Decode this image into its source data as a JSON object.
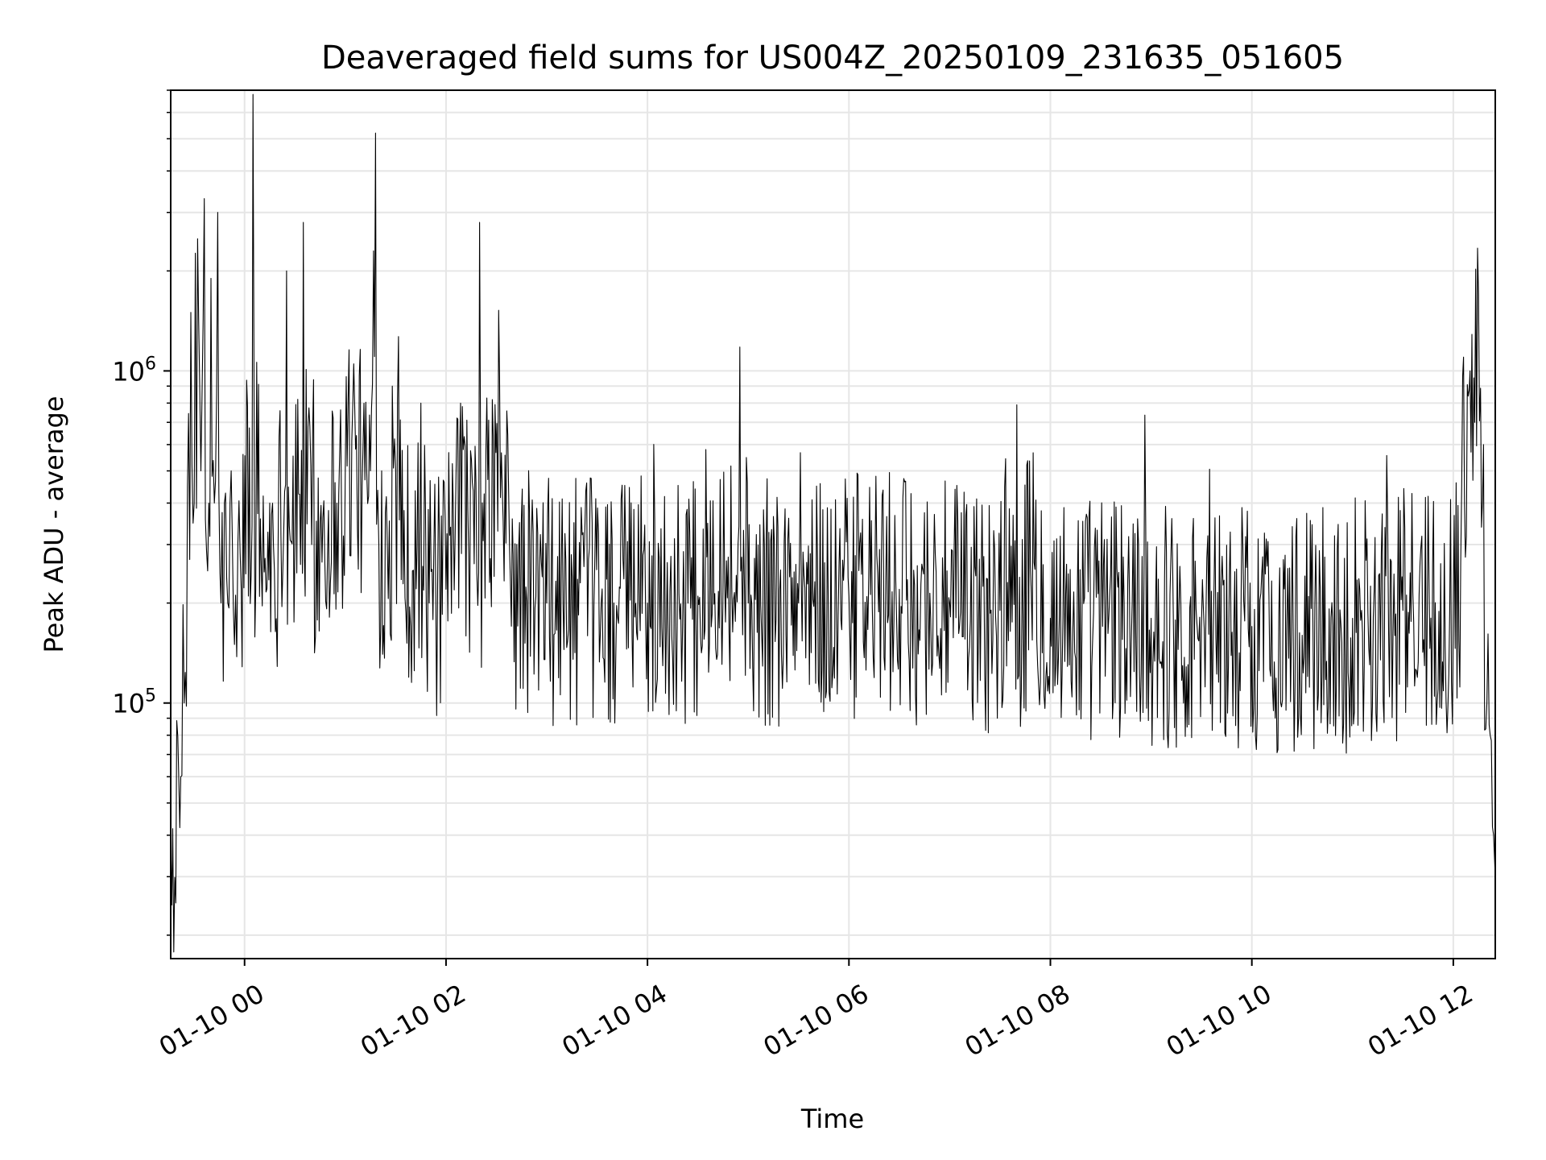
{
  "chart_data": {
    "type": "line",
    "title": "Deaveraged field sums for US004Z_20250109_231635_051605",
    "xlabel": "Time",
    "ylabel": "Peak ADU - average",
    "xscale": "time",
    "yscale": "log",
    "grid": true,
    "legend": "none",
    "line_color": "#000000",
    "grid_color": "#e6e6e6",
    "xlim": [
      "2025-01-09 23:16",
      "2025-01-10 12:25"
    ],
    "ylim": [
      17000,
      7000000
    ],
    "x_ticks": [
      {
        "value": "2025-01-10 00:00",
        "label": "01-10 00"
      },
      {
        "value": "2025-01-10 02:00",
        "label": "01-10 02"
      },
      {
        "value": "2025-01-10 04:00",
        "label": "01-10 04"
      },
      {
        "value": "2025-01-10 06:00",
        "label": "01-10 06"
      },
      {
        "value": "2025-01-10 08:00",
        "label": "01-10 08"
      },
      {
        "value": "2025-01-10 10:00",
        "label": "01-10 10"
      },
      {
        "value": "2025-01-10 12:00",
        "label": "01-10 12"
      }
    ],
    "y_major_ticks": [
      {
        "value": 100000,
        "base": "10",
        "exp": "5"
      },
      {
        "value": 1000000,
        "base": "10",
        "exp": "6"
      }
    ],
    "series": [
      {
        "x": [
          "2025-01-09 23:16",
          "2025-01-09 23:19",
          "2025-01-09 23:22",
          "2025-01-09 23:24",
          "2025-01-09 23:26",
          "2025-01-09 23:28",
          "2025-01-09 23:30",
          "2025-01-09 23:32",
          "2025-01-09 23:34",
          "2025-01-09 23:36",
          "2025-01-09 23:38",
          "2025-01-09 23:40",
          "2025-01-09 23:42",
          "2025-01-09 23:44",
          "2025-01-09 23:46",
          "2025-01-09 23:48",
          "2025-01-09 23:50",
          "2025-01-09 23:52",
          "2025-01-09 23:54",
          "2025-01-09 23:56",
          "2025-01-09 23:58",
          "2025-01-10 00:05",
          "2025-01-10 00:10",
          "2025-01-10 00:15",
          "2025-01-10 00:20",
          "2025-01-10 00:25",
          "2025-01-10 00:30",
          "2025-01-10 00:35",
          "2025-01-10 00:40",
          "2025-01-10 00:45",
          "2025-01-10 00:50",
          "2025-01-10 00:55",
          "2025-01-10 01:00",
          "2025-01-10 01:05",
          "2025-01-10 01:10",
          "2025-01-10 01:15",
          "2025-01-10 01:18",
          "2025-01-10 01:20",
          "2025-01-10 01:25",
          "2025-01-10 01:28",
          "2025-01-10 01:30",
          "2025-01-10 01:35",
          "2025-01-10 01:40",
          "2025-01-10 01:45",
          "2025-01-10 01:50",
          "2025-01-10 02:00",
          "2025-01-10 02:20",
          "2025-01-10 02:40",
          "2025-01-10 03:00",
          "2025-01-10 03:20",
          "2025-01-10 03:40",
          "2025-01-10 04:00",
          "2025-01-10 04:30",
          "2025-01-10 04:55",
          "2025-01-10 05:00",
          "2025-01-10 05:30",
          "2025-01-10 06:00",
          "2025-01-10 06:30",
          "2025-01-10 07:00",
          "2025-01-10 07:30",
          "2025-01-10 07:40",
          "2025-01-10 08:00",
          "2025-01-10 08:30",
          "2025-01-10 09:00",
          "2025-01-10 09:30",
          "2025-01-10 10:00",
          "2025-01-10 10:30",
          "2025-01-10 11:00",
          "2025-01-10 11:30",
          "2025-01-10 12:00",
          "2025-01-10 12:05",
          "2025-01-10 12:10",
          "2025-01-10 12:15",
          "2025-01-10 12:18",
          "2025-01-10 12:20",
          "2025-01-10 12:22",
          "2025-01-10 12:24",
          "2025-01-10 12:25"
        ],
        "y": [
          40000,
          25000,
          60000,
          100000,
          450000,
          1500000,
          400000,
          2500000,
          500000,
          3300000,
          250000,
          1900000,
          400000,
          3000000,
          200000,
          400000,
          200000,
          500000,
          150000,
          300000,
          220000,
          6800000,
          250000,
          400000,
          300000,
          2000000,
          300000,
          2800000,
          300000,
          350000,
          380000,
          400000,
          500000,
          1050000,
          450000,
          500000,
          5200000,
          300000,
          300000,
          900000,
          500000,
          380000,
          250000,
          800000,
          200000,
          220000,
          2800000,
          280000,
          200000,
          230000,
          200000,
          200000,
          210000,
          1180000,
          200000,
          200000,
          210000,
          220000,
          200000,
          190000,
          790000,
          180000,
          190000,
          180000,
          170000,
          170000,
          160000,
          180000,
          190000,
          200000,
          450000,
          1000000,
          1700000,
          600000,
          100000,
          80000,
          40000,
          30000
        ]
      }
    ]
  }
}
